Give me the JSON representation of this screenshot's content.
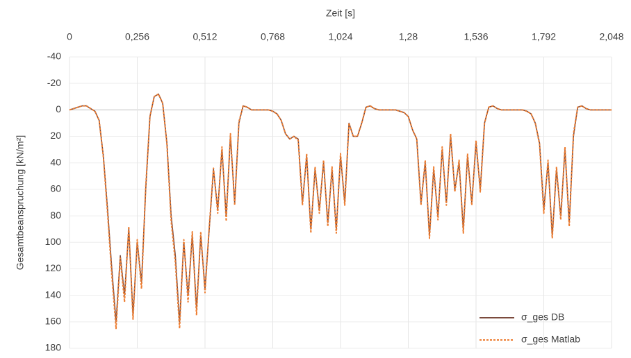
{
  "chart_data": {
    "type": "line",
    "x_label": "Zeit [s]",
    "y_label": "Gesamtbeanspruchung [kN/m²]",
    "xlim": [
      0,
      2.048
    ],
    "xticks": [
      0,
      {
        "value": 0.256,
        "label": "0,256"
      },
      {
        "value": 0.512,
        "label": "0,512"
      },
      {
        "value": 0.768,
        "label": "0,768"
      },
      {
        "value": 1.024,
        "label": "1,024"
      },
      {
        "value": 1.28,
        "label": "1,28"
      },
      {
        "value": 1.536,
        "label": "1,536"
      },
      {
        "value": 1.792,
        "label": "1,792"
      },
      {
        "value": 2.048,
        "label": "2,048"
      }
    ],
    "ylim": [
      -40,
      180
    ],
    "yticks": [
      -40,
      -20,
      0,
      20,
      40,
      60,
      80,
      100,
      120,
      140,
      160,
      180
    ],
    "y_inverted": true,
    "x_axis_top": true,
    "grid": true,
    "legend": "lower right",
    "x": [
      0,
      0.016,
      0.032,
      0.048,
      0.064,
      0.08,
      0.096,
      0.112,
      0.128,
      0.144,
      0.16,
      0.176,
      0.192,
      0.208,
      0.224,
      0.24,
      0.256,
      0.272,
      0.288,
      0.304,
      0.32,
      0.336,
      0.352,
      0.368,
      0.384,
      0.4,
      0.416,
      0.432,
      0.448,
      0.464,
      0.48,
      0.496,
      0.512,
      0.528,
      0.544,
      0.56,
      0.576,
      0.592,
      0.608,
      0.624,
      0.64,
      0.656,
      0.672,
      0.688,
      0.704,
      0.72,
      0.736,
      0.752,
      0.768,
      0.784,
      0.8,
      0.816,
      0.832,
      0.848,
      0.864,
      0.88,
      0.896,
      0.912,
      0.928,
      0.944,
      0.96,
      0.976,
      0.992,
      1.008,
      1.024,
      1.04,
      1.056,
      1.072,
      1.088,
      1.104,
      1.12,
      1.136,
      1.152,
      1.168,
      1.184,
      1.2,
      1.216,
      1.232,
      1.248,
      1.264,
      1.28,
      1.296,
      1.312,
      1.328,
      1.344,
      1.36,
      1.376,
      1.392,
      1.408,
      1.424,
      1.44,
      1.456,
      1.472,
      1.488,
      1.504,
      1.52,
      1.536,
      1.552,
      1.568,
      1.584,
      1.6,
      1.616,
      1.632,
      1.648,
      1.664,
      1.68,
      1.696,
      1.712,
      1.728,
      1.744,
      1.76,
      1.776,
      1.792,
      1.808,
      1.824,
      1.84,
      1.856,
      1.872,
      1.888,
      1.904,
      1.92,
      1.936,
      1.952,
      1.968,
      1.984,
      2.0,
      2.016,
      2.032,
      2.048
    ],
    "series": [
      {
        "name": "σ_ges DB",
        "color": "#7b4a3d",
        "dashed": false,
        "values": [
          0,
          -1,
          -2,
          -3,
          -3,
          -1,
          1,
          8,
          35,
          75,
          120,
          160,
          110,
          140,
          90,
          155,
          100,
          130,
          60,
          5,
          -10,
          -12,
          -5,
          25,
          80,
          110,
          160,
          100,
          140,
          95,
          150,
          95,
          135,
          90,
          45,
          75,
          30,
          80,
          20,
          70,
          10,
          -3,
          -2,
          0,
          0,
          0,
          0,
          0,
          1,
          3,
          8,
          18,
          22,
          20,
          22,
          70,
          35,
          90,
          45,
          75,
          40,
          85,
          45,
          90,
          35,
          70,
          10,
          20,
          20,
          10,
          -2,
          -3,
          -1,
          0,
          0,
          0,
          0,
          0,
          1,
          2,
          5,
          15,
          22,
          70,
          40,
          95,
          45,
          80,
          30,
          70,
          20,
          60,
          40,
          90,
          35,
          70,
          25,
          60,
          10,
          -2,
          -3,
          -1,
          0,
          0,
          0,
          0,
          0,
          0,
          1,
          3,
          10,
          25,
          75,
          40,
          95,
          45,
          80,
          30,
          85,
          20,
          -2,
          -3,
          -1,
          0,
          0,
          0,
          0,
          0,
          0
        ]
      },
      {
        "name": "σ_ges Matlab",
        "color": "#ed7d31",
        "dashed": true,
        "values": [
          0,
          -1,
          -2,
          -3,
          -3,
          -1,
          1,
          8,
          36,
          78,
          125,
          165,
          112,
          145,
          88,
          158,
          98,
          135,
          58,
          5,
          -10,
          -12,
          -5,
          26,
          84,
          115,
          165,
          98,
          145,
          92,
          155,
          92,
          138,
          88,
          44,
          78,
          28,
          84,
          18,
          72,
          9,
          -3,
          -2,
          0,
          0,
          0,
          0,
          0,
          1,
          3,
          8,
          18,
          22,
          20,
          23,
          72,
          33,
          93,
          43,
          78,
          38,
          88,
          43,
          93,
          33,
          72,
          10,
          20,
          20,
          10,
          -2,
          -3,
          -1,
          0,
          0,
          0,
          0,
          0,
          1,
          2,
          5,
          15,
          22,
          72,
          38,
          97,
          43,
          83,
          28,
          72,
          18,
          62,
          38,
          93,
          33,
          72,
          23,
          62,
          10,
          -2,
          -3,
          -1,
          0,
          0,
          0,
          0,
          0,
          0,
          1,
          3,
          10,
          26,
          78,
          38,
          97,
          43,
          83,
          28,
          88,
          18,
          -2,
          -3,
          -1,
          0,
          0,
          0,
          0,
          0,
          0
        ]
      }
    ]
  }
}
